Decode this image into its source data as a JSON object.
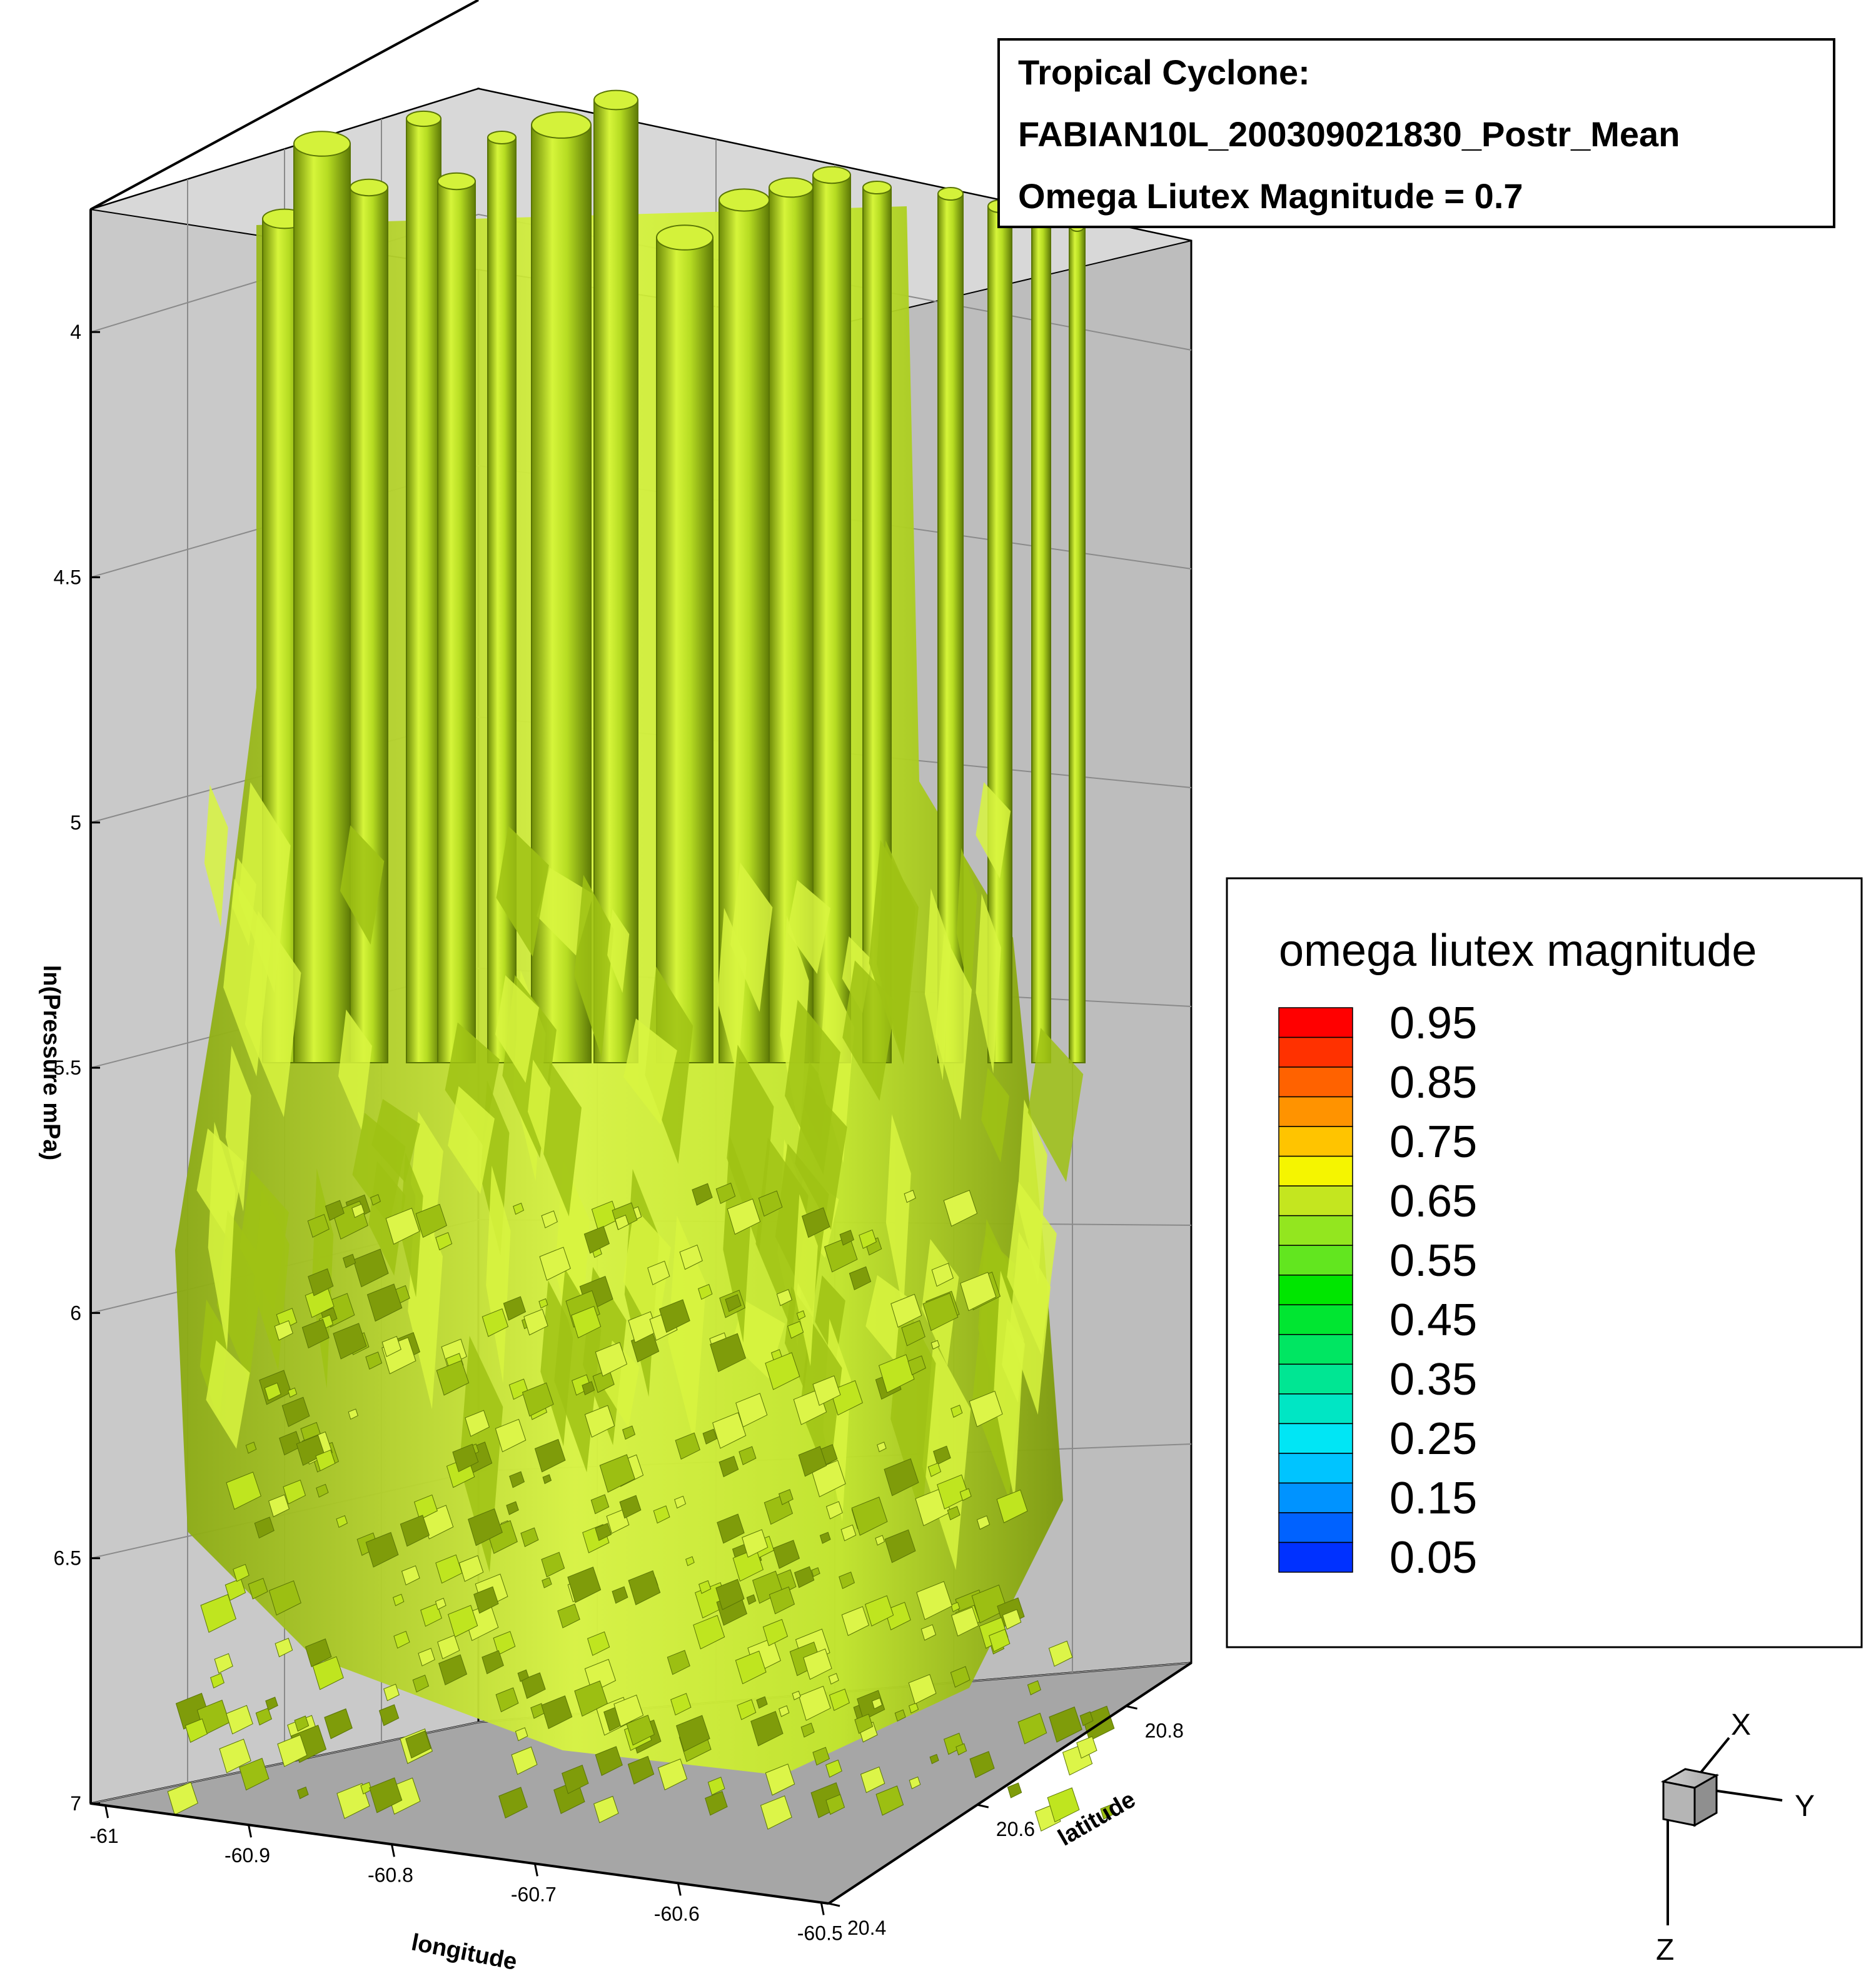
{
  "chart_data": {
    "type": "3d-isosurface",
    "title_lines": [
      "Tropical Cyclone:",
      "FABIAN10L_200309021830_Postr_Mean",
      "Omega Liutex Magnitude = 0.7"
    ],
    "iso_value": 0.7,
    "iso_color": "#bfe51f",
    "axes": {
      "x": {
        "label": "longitude",
        "ticks": [
          "-61",
          "-60.9",
          "-60.8",
          "-60.7",
          "-60.6",
          "-60.5"
        ],
        "range": [
          -61,
          -60.5
        ]
      },
      "y": {
        "label": "latitude",
        "ticks": [
          "20.4",
          "20.6",
          "20.8"
        ],
        "range": [
          20.4,
          20.8
        ]
      },
      "z": {
        "label": "ln(Pressure mPa)",
        "ticks": [
          "4",
          "4.5",
          "5",
          "5.5",
          "6",
          "6.5",
          "7"
        ],
        "range": [
          3.75,
          7
        ],
        "reversed": true
      }
    },
    "legend": {
      "title": "omega liutex magnitude",
      "placement": "right",
      "labels": [
        "0.95",
        "0.85",
        "0.75",
        "0.65",
        "0.55",
        "0.45",
        "0.35",
        "0.25",
        "0.15",
        "0.05"
      ],
      "levels": [
        0.95,
        0.9,
        0.85,
        0.8,
        0.75,
        0.7,
        0.65,
        0.6,
        0.55,
        0.5,
        0.45,
        0.4,
        0.35,
        0.3,
        0.25,
        0.2,
        0.15,
        0.1,
        0.05
      ],
      "colors": [
        "#ff0000",
        "#ff3100",
        "#ff6200",
        "#ff9300",
        "#ffc400",
        "#f5f500",
        "#c4e61f",
        "#93e61f",
        "#62e61f",
        "#00e600",
        "#00e631",
        "#00e662",
        "#00e693",
        "#00e6c4",
        "#00e6f5",
        "#00c4ff",
        "#0093ff",
        "#0062ff",
        "#0031ff"
      ]
    },
    "orientation_triad": [
      "X",
      "Y",
      "Z"
    ],
    "grid": true
  }
}
